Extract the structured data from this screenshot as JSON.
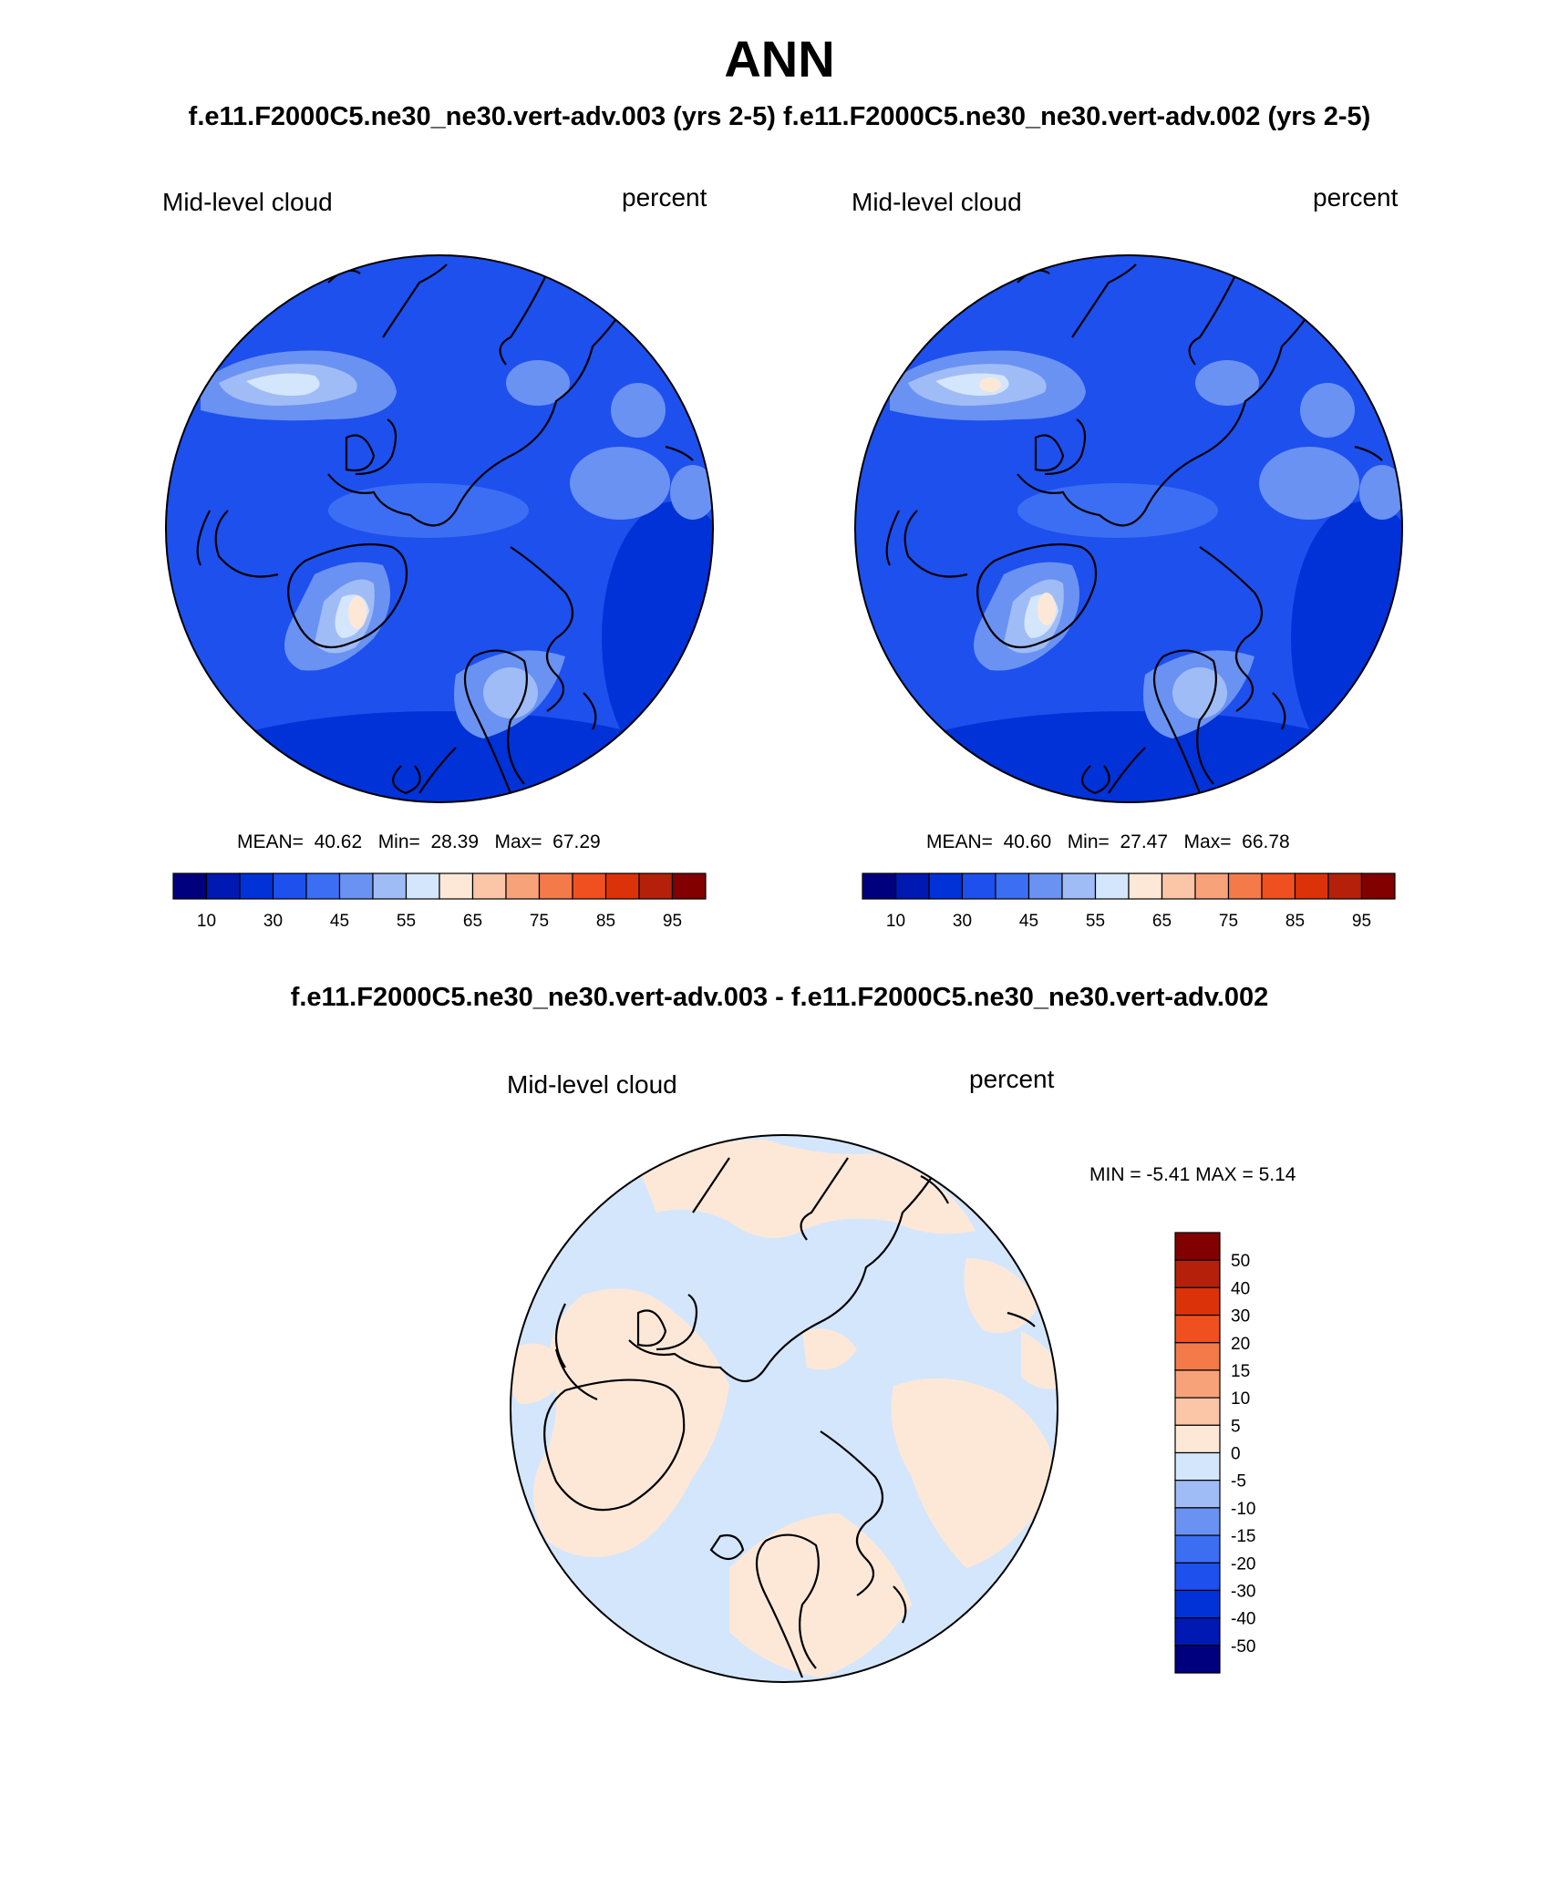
{
  "title": "ANN",
  "subtitle": "f.e11.F2000C5.ne30_ne30.vert-adv.003 (yrs 2-5)  f.e11.F2000C5.ne30_ne30.vert-adv.002 (yrs 2-5)",
  "diff_title": "f.e11.F2000C5.ne30_ne30.vert-adv.003 - f.e11.F2000C5.ne30_ne30.vert-adv.002",
  "colors": {
    "field_scale": [
      "#00007f",
      "#0019b2",
      "#0032d8",
      "#1e50ee",
      "#3c6ef4",
      "#6a92f2",
      "#a0bcf6",
      "#d4e6fc",
      "#fde8d8",
      "#fbc6a8",
      "#f8a27a",
      "#f47a4a",
      "#f05020",
      "#dc320a",
      "#b4200a",
      "#820000"
    ],
    "diff_scale": [
      "#00007f",
      "#0019b2",
      "#0032d8",
      "#1e50ee",
      "#3c6ef4",
      "#6a92f2",
      "#a0bcf6",
      "#d4e6fc",
      "#fde8d8",
      "#fbc6a8",
      "#f8a27a",
      "#f47a4a",
      "#f05020",
      "#dc320a",
      "#b4200a",
      "#820000"
    ]
  },
  "chart_data": [
    {
      "type": "heatmap",
      "projection": "north polar stereographic",
      "left_label": "Mid-level cloud",
      "right_label": "percent",
      "stats": {
        "mean": "40.62",
        "min": "28.39",
        "max": "67.29"
      },
      "stats_text": {
        "mean_label": "MEAN=",
        "min_label": "Min=",
        "max_label": "Max="
      },
      "colorbar": {
        "orientation": "horizontal",
        "levels": 16,
        "tick_labels": [
          "10",
          "30",
          "45",
          "55",
          "65",
          "75",
          "85",
          "95"
        ]
      }
    },
    {
      "type": "heatmap",
      "projection": "north polar stereographic",
      "left_label": "Mid-level cloud",
      "right_label": "percent",
      "stats": {
        "mean": "40.60",
        "min": "27.47",
        "max": "66.78"
      },
      "stats_text": {
        "mean_label": "MEAN=",
        "min_label": "Min=",
        "max_label": "Max="
      },
      "colorbar": {
        "orientation": "horizontal",
        "levels": 16,
        "tick_labels": [
          "10",
          "30",
          "45",
          "55",
          "65",
          "75",
          "85",
          "95"
        ]
      }
    },
    {
      "type": "heatmap",
      "projection": "north polar stereographic",
      "left_label": "Mid-level cloud",
      "right_label": "percent",
      "stats_line": "MIN =  -5.41 MAX =   5.14",
      "stats": {
        "min": "-5.41",
        "max": "5.14"
      },
      "colorbar": {
        "orientation": "vertical",
        "levels": 16,
        "tick_labels": [
          "50",
          "40",
          "30",
          "20",
          "15",
          "10",
          "5",
          "0",
          "-5",
          "-10",
          "-15",
          "-20",
          "-30",
          "-40",
          "-50"
        ]
      }
    }
  ]
}
